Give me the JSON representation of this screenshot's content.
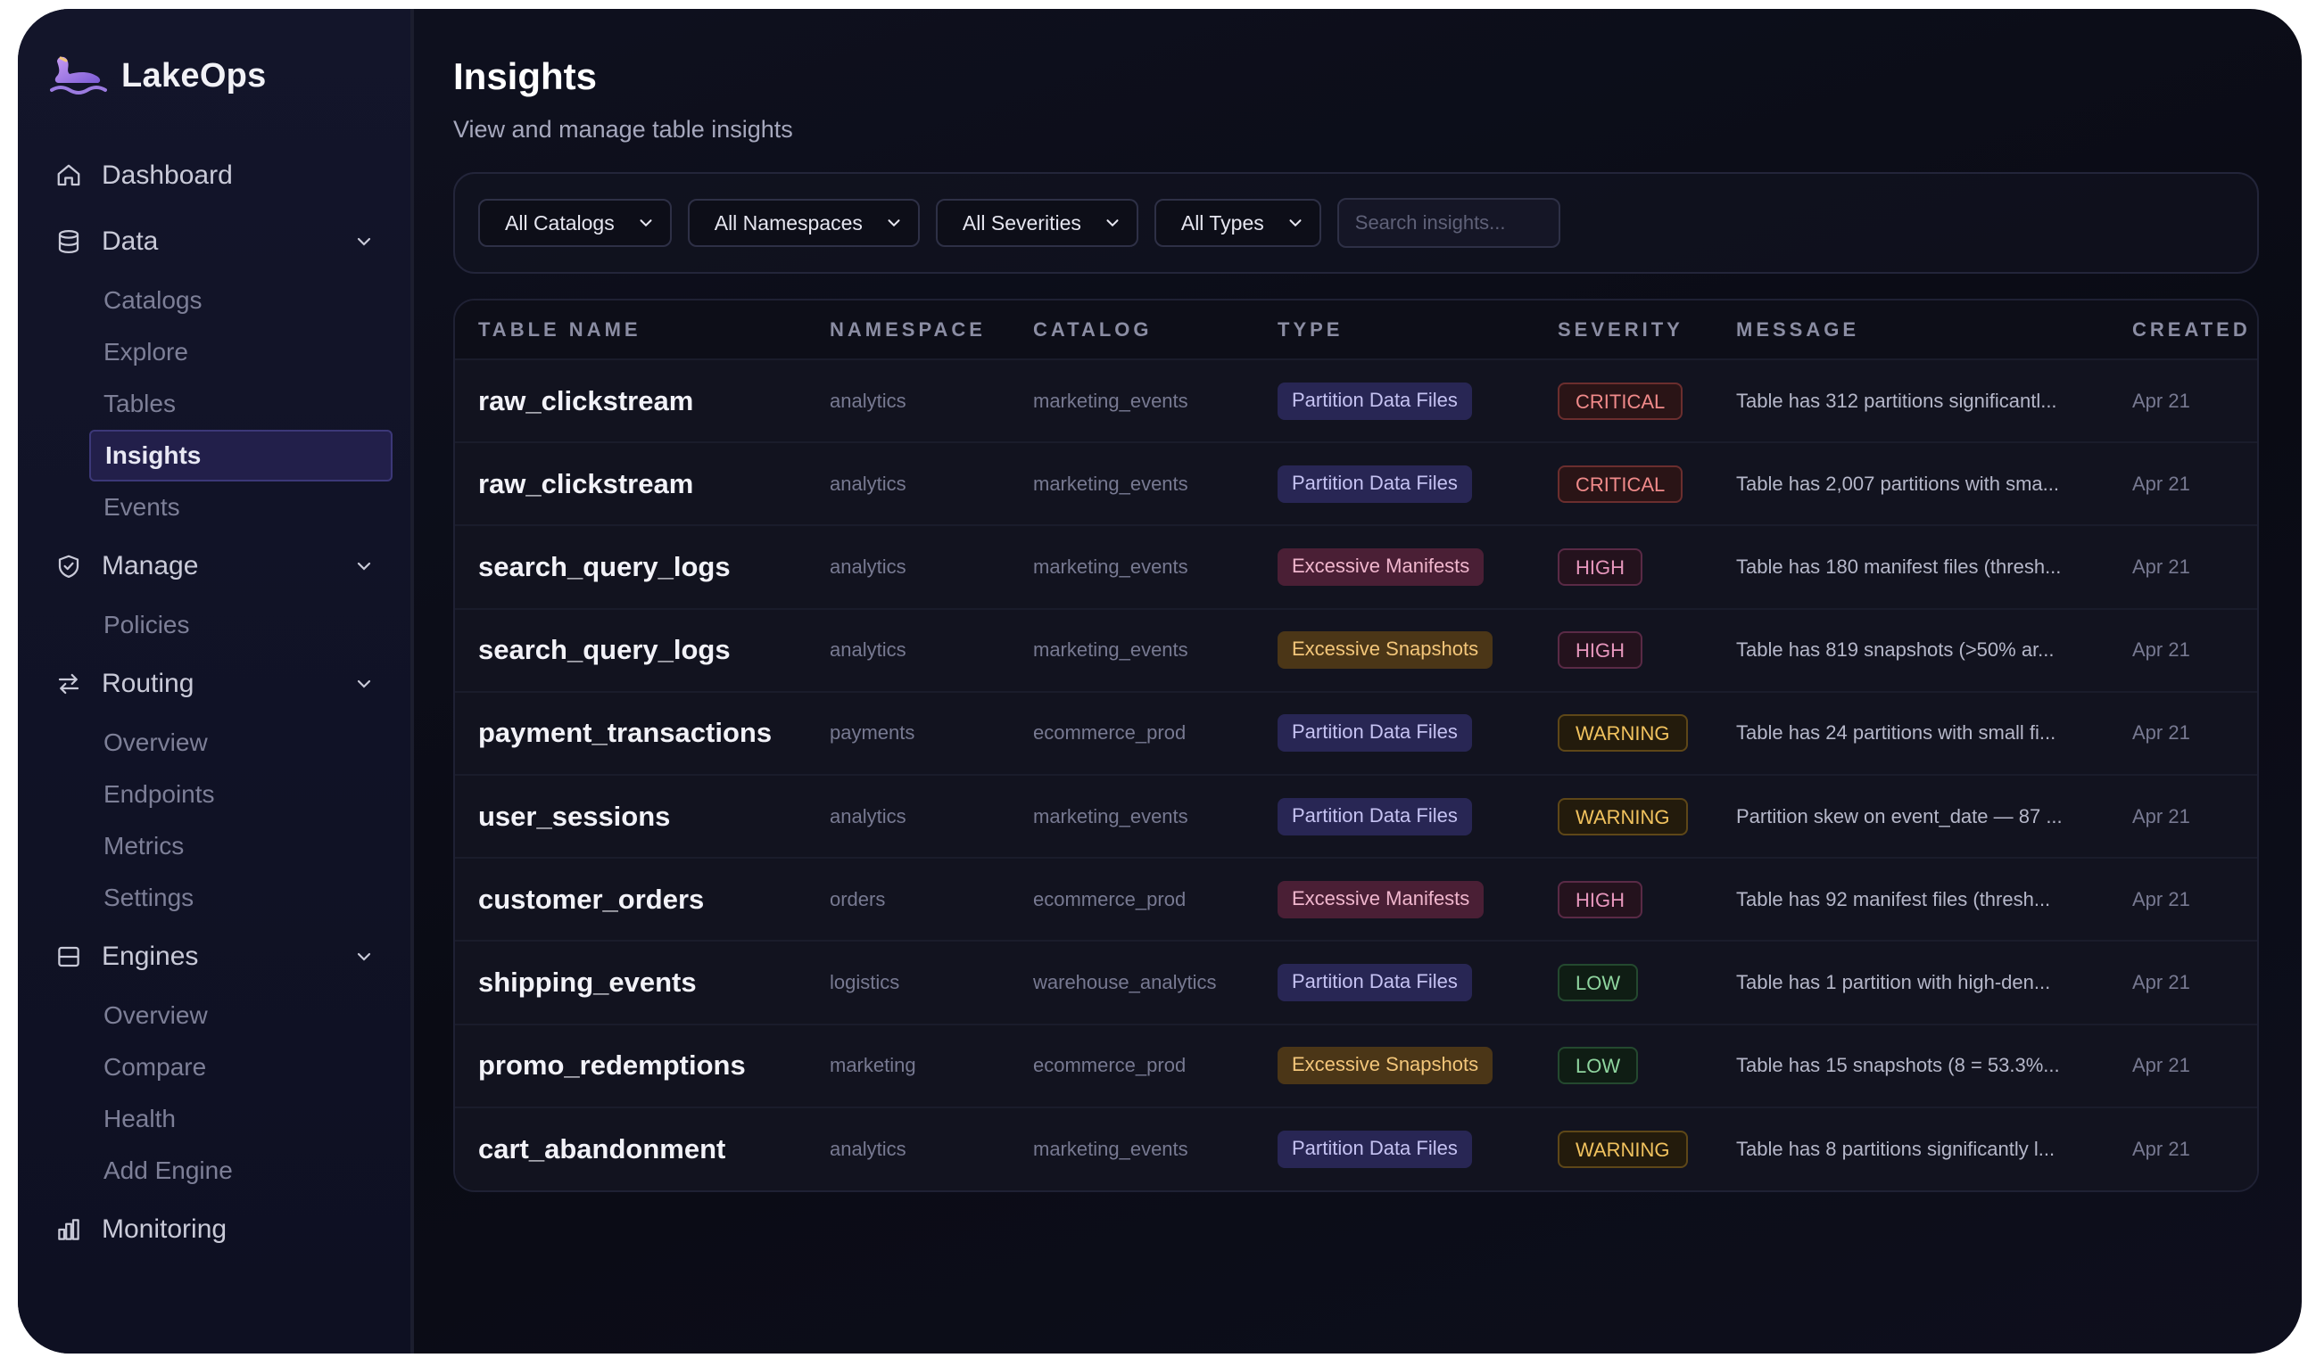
{
  "app": {
    "name": "LakeOps"
  },
  "sidebar": {
    "items": [
      {
        "label": "Dashboard",
        "icon": "home-icon"
      },
      {
        "label": "Data",
        "icon": "database-icon",
        "expanded": true,
        "children": [
          "Catalogs",
          "Explore",
          "Tables",
          "Insights",
          "Events"
        ]
      },
      {
        "label": "Manage",
        "icon": "shield-check-icon",
        "expanded": true,
        "children": [
          "Policies"
        ]
      },
      {
        "label": "Routing",
        "icon": "arrows-swap-icon",
        "expanded": true,
        "children": [
          "Overview",
          "Endpoints",
          "Metrics",
          "Settings"
        ]
      },
      {
        "label": "Engines",
        "icon": "server-icon",
        "expanded": true,
        "children": [
          "Overview",
          "Compare",
          "Health",
          "Add Engine"
        ]
      },
      {
        "label": "Monitoring",
        "icon": "bar-chart-icon"
      }
    ],
    "active": "Insights"
  },
  "page": {
    "title": "Insights",
    "subtitle": "View and manage table insights"
  },
  "filters": {
    "catalogs": "All Catalogs",
    "namespaces": "All Namespaces",
    "severities": "All Severities",
    "types": "All Types",
    "search_placeholder": "Search insights..."
  },
  "table": {
    "columns": [
      "TABLE NAME",
      "NAMESPACE",
      "CATALOG",
      "TYPE",
      "SEVERITY",
      "MESSAGE",
      "CREATED"
    ],
    "rows": [
      {
        "name": "raw_clickstream",
        "namespace": "analytics",
        "catalog": "marketing_events",
        "type": "Partition Data Files",
        "severity": "CRITICAL",
        "message": "Table has 312 partitions significantl...",
        "created": "Apr 21"
      },
      {
        "name": "raw_clickstream",
        "namespace": "analytics",
        "catalog": "marketing_events",
        "type": "Partition Data Files",
        "severity": "CRITICAL",
        "message": "Table has 2,007 partitions with sma...",
        "created": "Apr 21"
      },
      {
        "name": "search_query_logs",
        "namespace": "analytics",
        "catalog": "marketing_events",
        "type": "Excessive Manifests",
        "severity": "HIGH",
        "message": "Table has 180 manifest files (thresh...",
        "created": "Apr 21"
      },
      {
        "name": "search_query_logs",
        "namespace": "analytics",
        "catalog": "marketing_events",
        "type": "Excessive Snapshots",
        "severity": "HIGH",
        "message": "Table has 819 snapshots (>50% ar...",
        "created": "Apr 21"
      },
      {
        "name": "payment_transactions",
        "namespace": "payments",
        "catalog": "ecommerce_prod",
        "type": "Partition Data Files",
        "severity": "WARNING",
        "message": "Table has 24 partitions with small fi...",
        "created": "Apr 21"
      },
      {
        "name": "user_sessions",
        "namespace": "analytics",
        "catalog": "marketing_events",
        "type": "Partition Data Files",
        "severity": "WARNING",
        "message": "Partition skew on event_date — 87 ...",
        "created": "Apr 21"
      },
      {
        "name": "customer_orders",
        "namespace": "orders",
        "catalog": "ecommerce_prod",
        "type": "Excessive Manifests",
        "severity": "HIGH",
        "message": "Table has 92 manifest files (thresh...",
        "created": "Apr 21"
      },
      {
        "name": "shipping_events",
        "namespace": "logistics",
        "catalog": "warehouse_analytics",
        "type": "Partition Data Files",
        "severity": "LOW",
        "message": "Table has 1 partition with high-den...",
        "created": "Apr 21"
      },
      {
        "name": "promo_redemptions",
        "namespace": "marketing",
        "catalog": "ecommerce_prod",
        "type": "Excessive Snapshots",
        "severity": "LOW",
        "message": "Table has 15 snapshots (8 = 53.3%...",
        "created": "Apr 21"
      },
      {
        "name": "cart_abandonment",
        "namespace": "analytics",
        "catalog": "marketing_events",
        "type": "Partition Data Files",
        "severity": "WARNING",
        "message": "Table has 8 partitions significantly l...",
        "created": "Apr 21"
      }
    ]
  },
  "colors": {
    "accent": "#3c3878",
    "critical": "#f08a8a",
    "high": "#e797bd",
    "warning": "#f1c25e",
    "low": "#8fd59f"
  }
}
